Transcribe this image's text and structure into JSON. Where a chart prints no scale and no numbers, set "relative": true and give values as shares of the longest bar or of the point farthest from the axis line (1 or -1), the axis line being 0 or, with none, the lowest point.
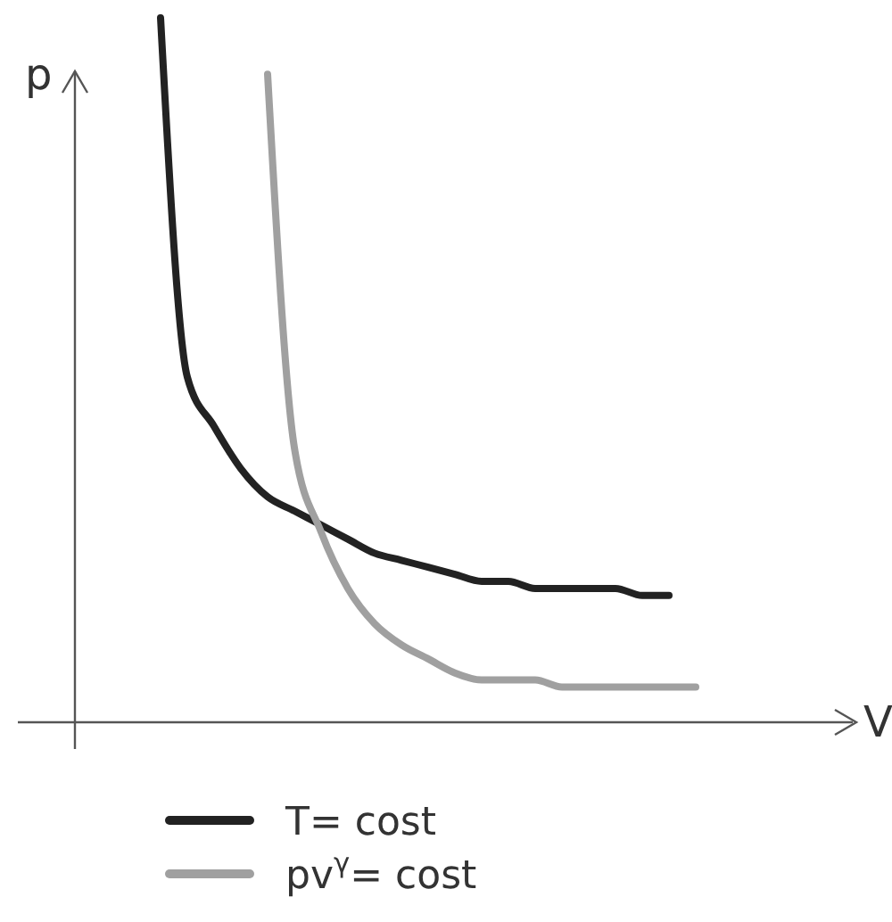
{
  "chart_data": {
    "type": "line",
    "relative": true,
    "xlabel": "V",
    "ylabel": "p",
    "legend": "bottom",
    "categories": [
      null,
      null,
      null,
      null,
      null,
      null,
      null,
      null,
      null,
      null,
      null,
      null,
      null,
      null,
      null,
      null,
      null,
      null,
      null,
      null,
      null,
      null,
      null,
      null
    ],
    "series": [
      {
        "name": "T= cost",
        "color": "#222222",
        "values": [
          null,
          null,
          null,
          1.0,
          0.49,
          0.42,
          0.36,
          0.32,
          0.3,
          0.28,
          0.26,
          0.24,
          0.23,
          0.22,
          0.21,
          0.2,
          0.2,
          0.19,
          0.19,
          0.19,
          0.19,
          0.18,
          0.18,
          null
        ]
      },
      {
        "name": "pv$^{γ}$= cost",
        "color": "#a0a0a0",
        "values": [
          null,
          null,
          null,
          null,
          null,
          null,
          null,
          0.92,
          0.39,
          0.27,
          0.19,
          0.14,
          0.11,
          0.09,
          0.07,
          0.06,
          0.06,
          0.06,
          0.05,
          0.05,
          0.05,
          0.05,
          0.05,
          0.05
        ]
      }
    ]
  }
}
